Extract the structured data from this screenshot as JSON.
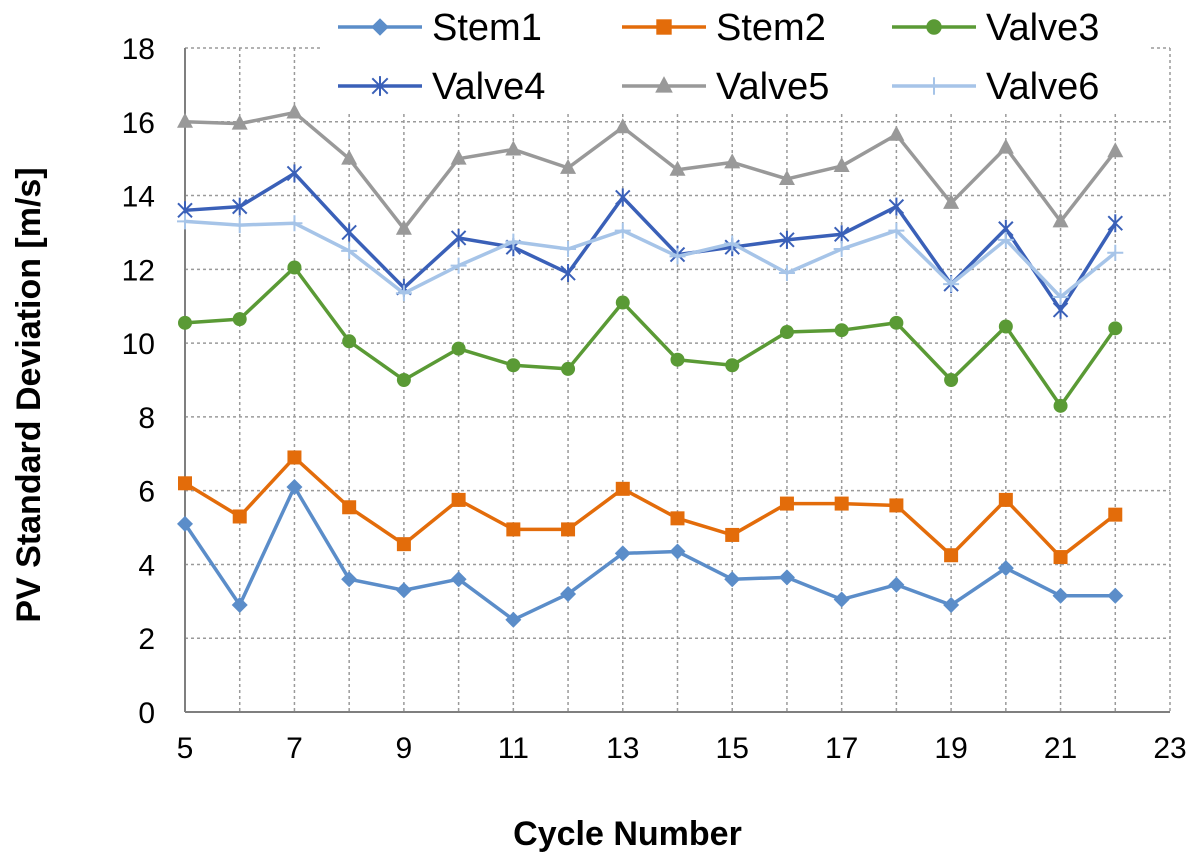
{
  "chart_data": {
    "type": "line",
    "title": "",
    "xlabel": "Cycle Number",
    "ylabel": "PV Standard Deviation [m/s]",
    "xlim": [
      5,
      23
    ],
    "ylim": [
      0,
      18
    ],
    "xticks": [
      5,
      7,
      9,
      11,
      13,
      15,
      17,
      19,
      21,
      23
    ],
    "yticks": [
      0,
      2,
      4,
      6,
      8,
      10,
      12,
      14,
      16,
      18
    ],
    "xtick_labels": [
      "5",
      "7",
      "9",
      "11",
      "13",
      "15",
      "17",
      "19",
      "21",
      "23"
    ],
    "ytick_labels": [
      "0",
      "2",
      "4",
      "6",
      "8",
      "10",
      "12",
      "14",
      "16",
      "18"
    ],
    "grid": true,
    "legend_position": "top",
    "x": [
      5,
      6,
      7,
      8,
      9,
      10,
      11,
      12,
      13,
      14,
      15,
      16,
      17,
      18,
      19,
      20,
      21,
      22
    ],
    "series": [
      {
        "name": "Stem1",
        "color": "#5B8DC9",
        "marker": "diamond",
        "values": [
          5.1,
          2.9,
          6.1,
          3.6,
          3.3,
          3.6,
          2.5,
          3.2,
          4.3,
          4.35,
          3.6,
          3.65,
          3.05,
          3.45,
          2.9,
          3.9,
          3.15,
          3.15
        ]
      },
      {
        "name": "Stem2",
        "color": "#E36C0A",
        "marker": "square",
        "values": [
          6.2,
          5.3,
          6.9,
          5.55,
          4.55,
          5.75,
          4.95,
          4.95,
          6.05,
          5.25,
          4.8,
          5.65,
          5.65,
          5.6,
          4.25,
          5.75,
          4.2,
          5.35
        ]
      },
      {
        "name": "Valve3",
        "color": "#5A9A35",
        "marker": "circle",
        "values": [
          10.55,
          10.65,
          12.05,
          10.05,
          9.0,
          9.85,
          9.4,
          9.3,
          11.1,
          9.55,
          9.4,
          10.3,
          10.35,
          10.55,
          9.0,
          10.45,
          8.3,
          10.4
        ]
      },
      {
        "name": "Valve4",
        "color": "#3A60B8",
        "marker": "asterisk",
        "values": [
          13.6,
          13.7,
          14.6,
          13.0,
          11.5,
          12.85,
          12.6,
          11.9,
          13.95,
          12.4,
          12.6,
          12.8,
          12.95,
          13.7,
          11.6,
          13.1,
          10.9,
          13.25
        ]
      },
      {
        "name": "Valve5",
        "color": "#999999",
        "marker": "triangle",
        "values": [
          16.0,
          15.95,
          16.25,
          15.0,
          13.1,
          15.0,
          15.25,
          14.75,
          15.85,
          14.7,
          14.9,
          14.45,
          14.8,
          15.65,
          13.8,
          15.3,
          13.3,
          15.2
        ]
      },
      {
        "name": "Valve6",
        "color": "#A6C4E8",
        "marker": "plus",
        "values": [
          13.3,
          13.2,
          13.25,
          12.5,
          11.35,
          12.1,
          12.75,
          12.55,
          13.05,
          12.35,
          12.7,
          11.9,
          12.55,
          13.05,
          11.6,
          12.8,
          11.25,
          12.45
        ]
      }
    ]
  }
}
